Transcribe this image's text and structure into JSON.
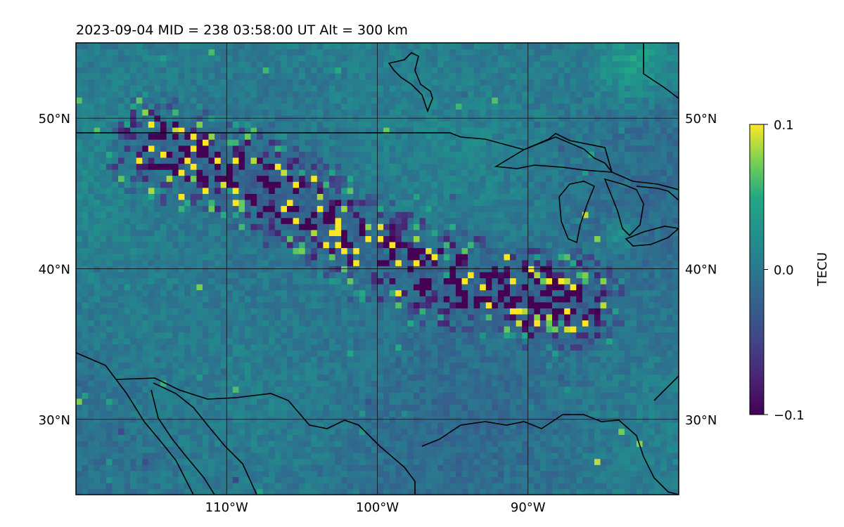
{
  "title": "2023-09-04  MID = 238    03:58:00  UT  Alt = 300 km",
  "map": {
    "type": "heatmap",
    "variable": "TECU",
    "colormap": "viridis",
    "lon_range": [
      -120,
      -80
    ],
    "lat_range": [
      25,
      55
    ],
    "grid": true,
    "lon_ticks": [
      {
        "value": -110,
        "label": "110°W"
      },
      {
        "value": -100,
        "label": "100°W"
      },
      {
        "value": -90,
        "label": "90°W"
      }
    ],
    "lat_ticks": [
      {
        "value": 50,
        "label": "50°N"
      },
      {
        "value": 40,
        "label": "40°N"
      },
      {
        "value": 30,
        "label": "30°N"
      }
    ],
    "coastline_color": "#000000",
    "disturbance_band": {
      "description_points": [
        [
          -115,
          48
        ],
        [
          -108,
          45.5
        ],
        [
          -103,
          42.5
        ],
        [
          -98,
          40
        ],
        [
          -93,
          38.5
        ],
        [
          -87,
          37.5
        ]
      ],
      "width_deg": 3.5
    },
    "positive_background_regions": [
      {
        "lon": -83,
        "lat": 53.5,
        "radius_deg": 4
      },
      {
        "lon": -84,
        "lat": 42,
        "radius_deg": 1.5
      }
    ]
  },
  "colorbar": {
    "label": "TECU",
    "min": -0.1,
    "max": 0.1,
    "ticks": [
      {
        "value": 0.1,
        "label": "0.1"
      },
      {
        "value": 0.0,
        "label": "0.0"
      },
      {
        "value": -0.1,
        "label": "−0.1"
      }
    ],
    "position": "right"
  }
}
